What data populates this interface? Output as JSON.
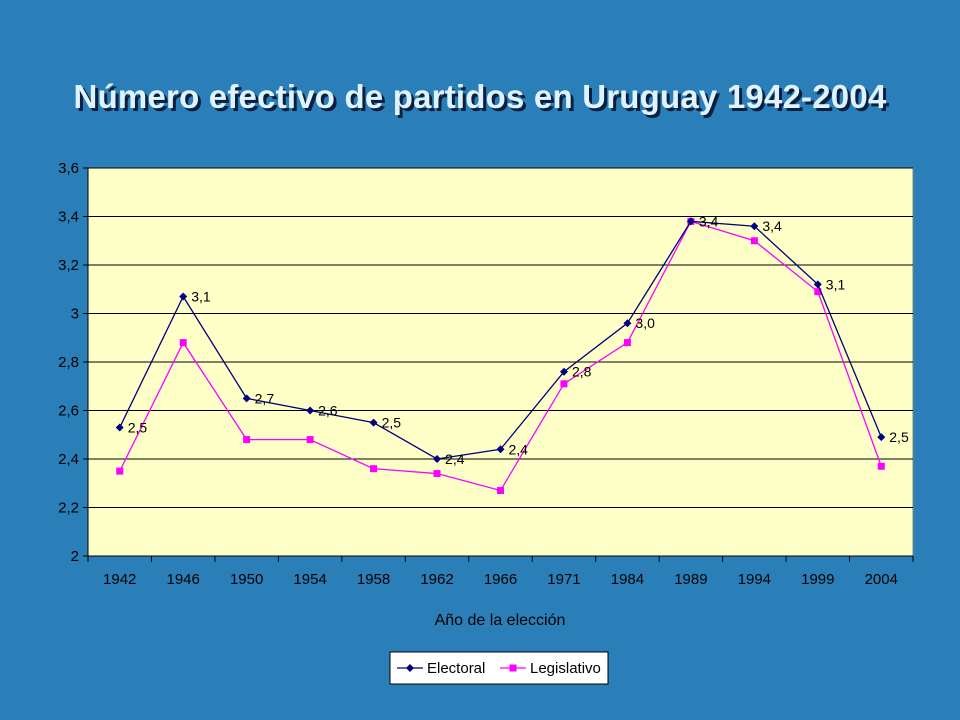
{
  "slide": {
    "title": "Número efectivo de partidos en Uruguay 1942-2004"
  },
  "colors": {
    "background": "#2a7fb8",
    "plot_area": "#ffffc8",
    "electoral": "#000080",
    "legislativo": "#ff00ff"
  },
  "chart_data": {
    "type": "line",
    "title": "",
    "xlabel": "Año de la elección",
    "ylabel": "",
    "categories": [
      "1942",
      "1946",
      "1950",
      "1954",
      "1958",
      "1962",
      "1966",
      "1971",
      "1984",
      "1989",
      "1994",
      "1999",
      "2004"
    ],
    "ylim": [
      2,
      3.6
    ],
    "yticks": [
      "2",
      "2,2",
      "2,4",
      "2,6",
      "2,8",
      "3",
      "3,2",
      "3,4",
      "3,6"
    ],
    "grid": true,
    "legend_position": "bottom",
    "series": [
      {
        "name": "Electoral",
        "marker": "diamond",
        "values": [
          2.53,
          3.07,
          2.65,
          2.6,
          2.55,
          2.4,
          2.44,
          2.76,
          2.96,
          3.38,
          3.36,
          3.12,
          2.49
        ],
        "labels": [
          "2,5",
          "3,1",
          "2,7",
          "2,6",
          "2,5",
          "2,4",
          "2,4",
          "2,8",
          "3,0",
          "3,4",
          "3,4",
          "3,1",
          "2,5"
        ]
      },
      {
        "name": "Legislativo",
        "marker": "square",
        "values": [
          2.35,
          2.88,
          2.48,
          2.48,
          2.36,
          2.34,
          2.27,
          2.71,
          2.88,
          3.38,
          3.3,
          3.09,
          2.37
        ]
      }
    ]
  }
}
